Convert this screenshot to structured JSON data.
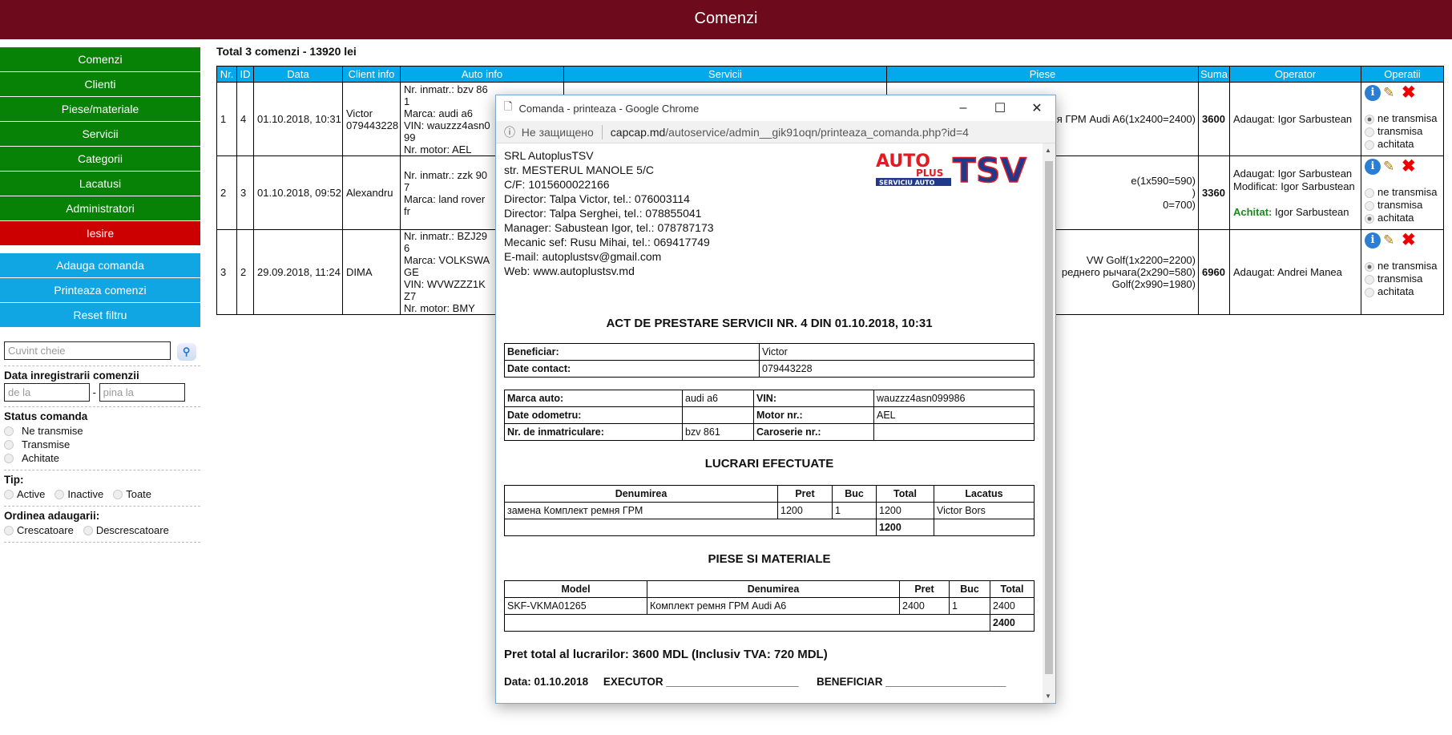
{
  "header": {
    "title": "Comenzi"
  },
  "sidebar": {
    "nav": [
      "Comenzi",
      "Clienti",
      "Piese/materiale",
      "Servicii",
      "Categorii",
      "Lacatusi",
      "Administratori"
    ],
    "logout": "Iesire",
    "actions": [
      "Adauga comanda",
      "Printeaza comenzi",
      "Reset filtru"
    ]
  },
  "filters": {
    "keyword_placeholder": "Cuvint cheie",
    "date_title": "Data inregistrarii comenzii",
    "date_from_placeholder": "de la",
    "date_sep": "-",
    "date_to_placeholder": "pina la",
    "status_title": "Status comanda",
    "status": [
      "Ne transmise",
      "Transmise",
      "Achitate"
    ],
    "tip_title": "Tip:",
    "tip": [
      "Active",
      "Inactive",
      "Toate"
    ],
    "order_title": "Ordinea adaugarii:",
    "order": [
      "Crescatoare",
      "Descrescatoare"
    ]
  },
  "summary": "Total 3 comenzi - 13920 lei",
  "table": {
    "headers": [
      "Nr.",
      "ID",
      "Data",
      "Client info",
      "Auto info",
      "Servicii",
      "Piese",
      "Suma",
      "Operator",
      "Operatii"
    ],
    "rows": [
      {
        "nr": "1",
        "id": "4",
        "data": "01.10.2018, 10:31",
        "client": [
          "Victor",
          "079443228"
        ],
        "auto": [
          "Nr. inmatr.: bzv 861",
          "Marca: audi a6",
          "VIN: wauzzz4asn099",
          "Nr. motor: AEL"
        ],
        "piese": [
          "я ГРМ Audi A6(1x2400=2400)"
        ],
        "suma": "3600",
        "operator": [
          {
            "k": "",
            "v": "Adaugat: Igor Sarbustean"
          }
        ],
        "status": "ne transmisa"
      },
      {
        "nr": "2",
        "id": "3",
        "data": "01.10.2018, 09:52",
        "client": [
          "Alexandru"
        ],
        "auto": [
          "Nr. inmatr.: zzk 907",
          "Marca: land rover fr"
        ],
        "piese": [
          "e(1x590=590)",
          ")",
          "0=700)"
        ],
        "suma": "3360",
        "operator": [
          {
            "k": "",
            "v": "Adaugat: Igor Sarbustean"
          },
          {
            "k": "",
            "v": "Modificat: Igor Sarbustean"
          },
          {
            "k": "Achitat:",
            "v": " Igor Sarbustean"
          }
        ],
        "status": "achitata"
      },
      {
        "nr": "3",
        "id": "2",
        "data": "29.09.2018, 11:24",
        "client": [
          "DIMA"
        ],
        "auto": [
          "Nr. inmatr.: BZJ296",
          "Marca: VOLKSWAGE",
          "VIN: WVWZZZ1KZ7",
          "Nr. motor: BMY"
        ],
        "piese": [
          " VW Golf(1x2200=2200)",
          "реднего рычага(2x290=580)",
          "Golf(2x990=1980)"
        ],
        "suma": "6960",
        "operator": [
          {
            "k": "",
            "v": "Adaugat: Andrei Manea"
          }
        ],
        "status": "ne transmisa"
      }
    ],
    "status_options": [
      "ne transmisa",
      "transmisa",
      "achitata"
    ]
  },
  "popup": {
    "title": "Comanda - printeaza - Google Chrome",
    "security": "Не защищено",
    "url_host": "capcap.md",
    "url_path": "/autoservice/admin__gik91oqn/printeaza_comanda.php?id=4",
    "company": [
      "SRL AutoplusTSV",
      "str. MESTERUL MANOLE 5/C",
      "C/F: 1015600022166",
      "Director: Talpa Victor, tel.: 076003114",
      "Director: Talpa Serghei, tel.: 078855041",
      "Manager: Sabustean Igor, tel.: 078787173",
      "Mecanic sef: Rusu Mihai, tel.: 069417749",
      "E-mail: autoplustsv@gmail.com",
      "Web: www.autoplustsv.md"
    ],
    "logo": {
      "auto": "AUTO",
      "plus": "PLUS",
      "serviciu": "SERVICIU AUTO",
      "tsv": "TSV"
    },
    "doc_title": "ACT DE PRESTARE SERVICII NR. 4 DIN 01.10.2018, 10:31",
    "client": [
      [
        "Beneficiar:",
        "Victor"
      ],
      [
        "Date contact:",
        "079443228"
      ]
    ],
    "auto": [
      [
        "Marca auto:",
        "audi a6",
        "VIN:",
        "wauzzz4asn099986"
      ],
      [
        "Date odometru:",
        "",
        "Motor nr.:",
        "AEL"
      ],
      [
        "Nr. de inmatriculare:",
        "bzv 861",
        "Caroserie nr.:",
        ""
      ]
    ],
    "works_title": "LUCRARI EFECTUATE",
    "works_headers": [
      "Denumirea",
      "Pret",
      "Buc",
      "Total",
      "Lacatus"
    ],
    "works_row": [
      "замена Комплект ремня ГРМ",
      "1200",
      "1",
      "1200",
      "Victor Bors"
    ],
    "works_total": "1200",
    "parts_title": "PIESE SI MATERIALE",
    "parts_headers": [
      "Model",
      "Denumirea",
      "Pret",
      "Buc",
      "Total"
    ],
    "parts_row": [
      "SKF-VKMA01265",
      "Комплект ремня ГРМ Audi A6",
      "2400",
      "1",
      "2400"
    ],
    "parts_total": "2400",
    "grand_total": "Pret total al lucrarilor: 3600 MDL (Inclusiv TVA: 720 MDL)",
    "footer": "Data: 01.10.2018     EXECUTOR ______________________      BENEFICIAR ____________________"
  },
  "colors": {
    "header": "#6d0a1c",
    "nav": "#078207",
    "logout": "#cc0000",
    "action": "#10a6e3",
    "table_header": "#04a9ec",
    "achitat": "#1a8a1a"
  }
}
